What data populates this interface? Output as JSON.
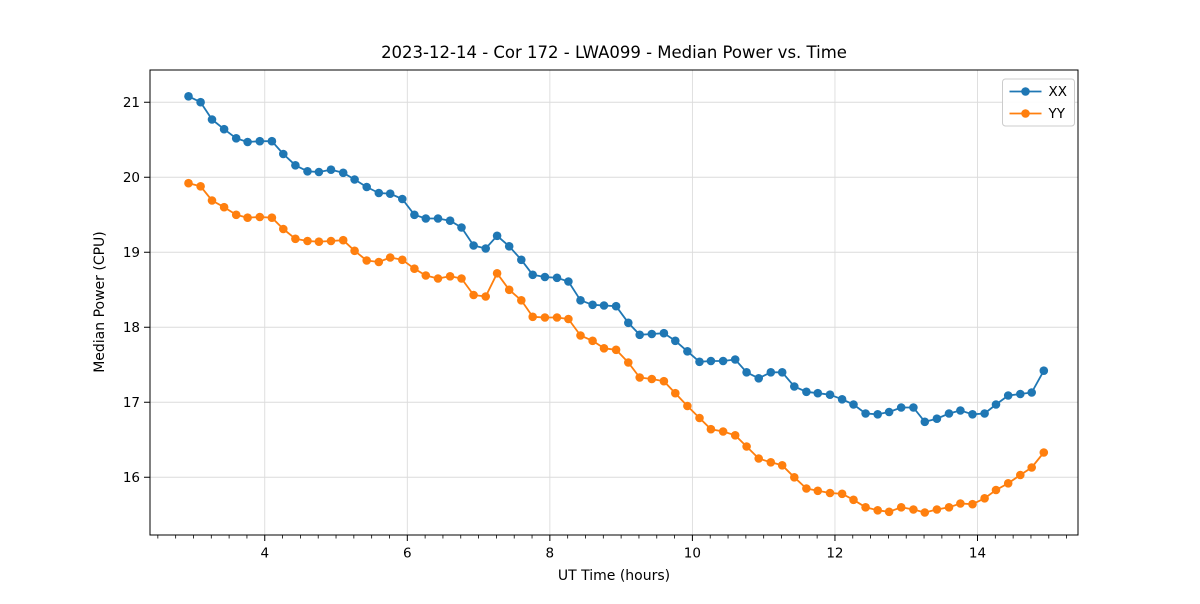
{
  "figure": {
    "background": "#ffffff"
  },
  "chart_data": {
    "type": "line",
    "title": "2023-12-14 - Cor 172 - LWA099 - Median Power vs. Time",
    "xlabel": "UT Time (hours)",
    "ylabel": "Median Power (CPU)",
    "xlim": [
      2.39,
      15.41
    ],
    "ylim": [
      15.23,
      21.43
    ],
    "x_major_ticks": [
      4,
      6,
      8,
      10,
      12,
      14
    ],
    "x_major_tick_labels": [
      "4",
      "6",
      "8",
      "10",
      "12",
      "14"
    ],
    "x_minor_tick_step": 0.25,
    "y_major_ticks": [
      16,
      17,
      18,
      19,
      20,
      21
    ],
    "y_major_tick_labels": [
      "16",
      "17",
      "18",
      "19",
      "20",
      "21"
    ],
    "grid": true,
    "marker": "circle",
    "legend": {
      "position": "upper-right",
      "entries": [
        {
          "label": "XX",
          "color": "#1f77b4"
        },
        {
          "label": "YY",
          "color": "#ff7f0e"
        }
      ]
    },
    "x": [
      2.93,
      3.1,
      3.26,
      3.43,
      3.6,
      3.76,
      3.93,
      4.1,
      4.26,
      4.43,
      4.6,
      4.76,
      4.93,
      5.1,
      5.26,
      5.43,
      5.6,
      5.76,
      5.93,
      6.1,
      6.26,
      6.43,
      6.6,
      6.76,
      6.93,
      7.1,
      7.26,
      7.43,
      7.6,
      7.76,
      7.93,
      8.1,
      8.26,
      8.43,
      8.6,
      8.76,
      8.93,
      9.1,
      9.26,
      9.43,
      9.6,
      9.76,
      9.93,
      10.1,
      10.26,
      10.43,
      10.6,
      10.76,
      10.93,
      11.1,
      11.26,
      11.43,
      11.6,
      11.76,
      11.93,
      12.1,
      12.26,
      12.43,
      12.6,
      12.76,
      12.93,
      13.1,
      13.26,
      13.43,
      13.6,
      13.76,
      13.93,
      14.1,
      14.26,
      14.43,
      14.6,
      14.76,
      14.93
    ],
    "series": [
      {
        "name": "XX",
        "color": "#1f77b4",
        "values": [
          21.08,
          21.0,
          20.77,
          20.64,
          20.52,
          20.47,
          20.48,
          20.48,
          20.31,
          20.16,
          20.08,
          20.07,
          20.1,
          20.06,
          19.97,
          19.87,
          19.79,
          19.78,
          19.71,
          19.5,
          19.45,
          19.45,
          19.42,
          19.33,
          19.09,
          19.05,
          19.22,
          19.08,
          18.9,
          18.7,
          18.67,
          18.66,
          18.61,
          18.36,
          18.3,
          18.29,
          18.28,
          18.06,
          17.9,
          17.91,
          17.92,
          17.82,
          17.68,
          17.54,
          17.55,
          17.55,
          17.57,
          17.4,
          17.32,
          17.4,
          17.4,
          17.21,
          17.14,
          17.12,
          17.1,
          17.04,
          16.97,
          16.85,
          16.84,
          16.87,
          16.93,
          16.93,
          16.74,
          16.78,
          16.85,
          16.89,
          16.84,
          16.85,
          16.97,
          17.09,
          17.11,
          17.13,
          17.42
        ]
      },
      {
        "name": "YY",
        "color": "#ff7f0e",
        "values": [
          19.92,
          19.88,
          19.69,
          19.6,
          19.5,
          19.46,
          19.47,
          19.46,
          19.31,
          19.18,
          19.15,
          19.14,
          19.15,
          19.16,
          19.02,
          18.89,
          18.87,
          18.93,
          18.9,
          18.78,
          18.69,
          18.65,
          18.68,
          18.65,
          18.43,
          18.41,
          18.72,
          18.5,
          18.36,
          18.14,
          18.13,
          18.13,
          18.11,
          17.89,
          17.82,
          17.72,
          17.7,
          17.53,
          17.33,
          17.31,
          17.28,
          17.12,
          16.95,
          16.79,
          16.64,
          16.61,
          16.56,
          16.41,
          16.25,
          16.2,
          16.16,
          16.0,
          15.85,
          15.82,
          15.79,
          15.78,
          15.7,
          15.6,
          15.56,
          15.54,
          15.6,
          15.57,
          15.53,
          15.57,
          15.6,
          15.65,
          15.64,
          15.72,
          15.83,
          15.92,
          16.03,
          16.13,
          16.33
        ]
      }
    ],
    "style": {
      "grid_color": "#dcdcdc",
      "spine_color": "#000000",
      "background": "#ffffff",
      "line_width": 1.8,
      "marker_radius": 4.3
    }
  }
}
